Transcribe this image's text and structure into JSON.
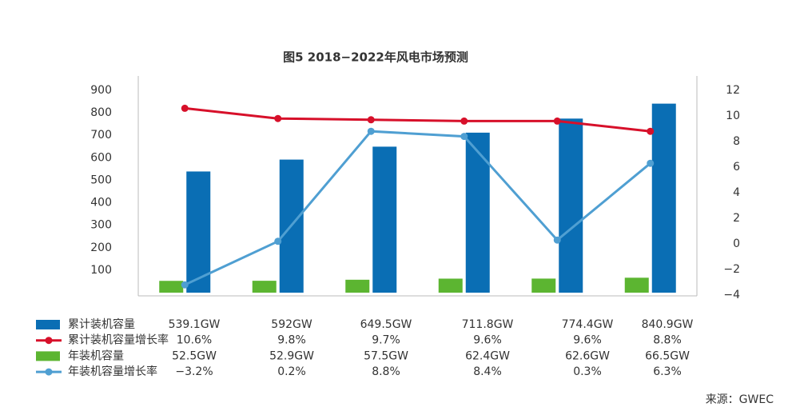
{
  "chart_data": {
    "type": "bar-line",
    "title": "图5 2018−2022年风电市场预测",
    "categories": [
      null,
      null,
      null,
      null,
      null,
      null
    ],
    "series": [
      {
        "name": "累计装机容量",
        "type": "bar",
        "color": "#0a6eb4",
        "values": [
          539.1,
          592,
          649.5,
          711.8,
          774.4,
          840.9
        ],
        "value_labels": [
          "539.1GW",
          "592GW",
          "649.5GW",
          "711.8GW",
          "774.4GW",
          "840.9GW"
        ]
      },
      {
        "name": "累计装机容量增长率",
        "type": "line",
        "axis": "y2",
        "color": "#d7102a",
        "values": [
          10.6,
          9.8,
          9.7,
          9.6,
          9.6,
          8.8
        ],
        "value_labels": [
          "10.6%",
          "9.8%",
          "9.7%",
          "9.6%",
          "9.6%",
          "8.8%"
        ]
      },
      {
        "name": "年装机容量",
        "type": "bar",
        "color": "#5cb531",
        "values": [
          52.5,
          52.9,
          57.5,
          62.4,
          62.6,
          66.5
        ],
        "value_labels": [
          "52.5GW",
          "52.9GW",
          "57.5GW",
          "62.4GW",
          "62.6GW",
          "66.5GW"
        ]
      },
      {
        "name": "年装机容量增长率",
        "type": "line",
        "axis": "y2",
        "color": "#4f9fd2",
        "values": [
          -3.2,
          0.2,
          8.8,
          8.4,
          0.3,
          6.3
        ],
        "value_labels": [
          "−3.2%",
          "0.2%",
          "8.8%",
          "8.4%",
          "0.3%",
          "6.3%"
        ]
      }
    ],
    "ylim": [
      0,
      900
    ],
    "yticks": [
      100,
      200,
      300,
      400,
      500,
      600,
      700,
      800,
      900
    ],
    "y2lim": [
      -4,
      12
    ],
    "y2ticks": [
      {
        "value": -4,
        "label": "−4"
      },
      {
        "value": -2,
        "label": "−2"
      },
      0,
      2,
      4,
      6,
      8,
      10,
      12
    ],
    "source": "来源：GWEC"
  }
}
